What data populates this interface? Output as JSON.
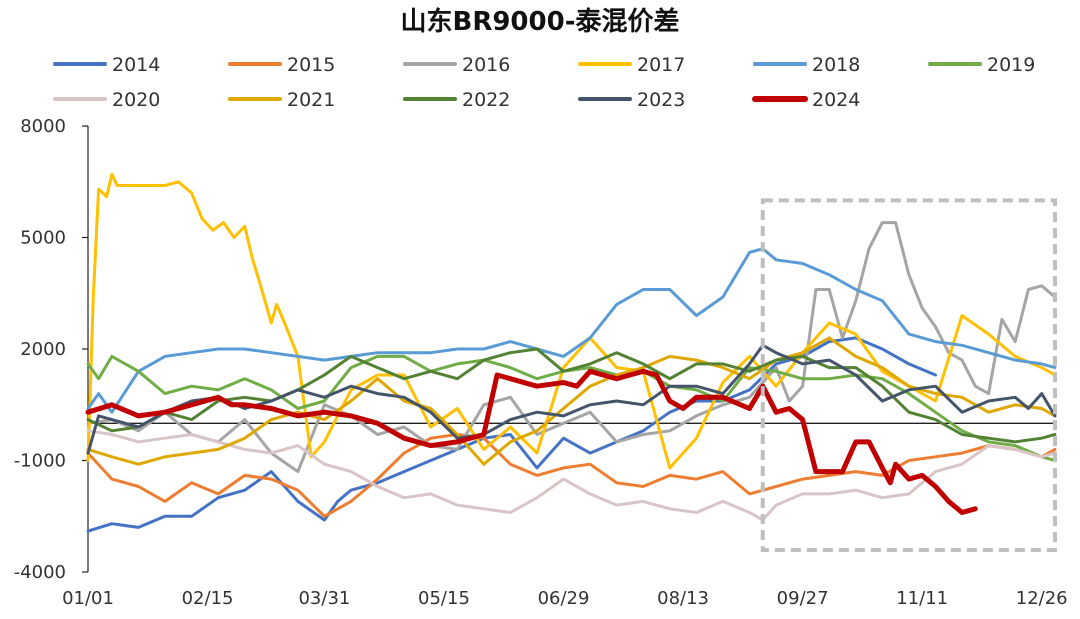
{
  "chart_data": {
    "type": "line",
    "title": "山东BR9000-泰混价差",
    "xlabel": "",
    "ylabel": "",
    "ylim": [
      -4000,
      8000
    ],
    "y_ticks": [
      8000,
      5000,
      2000,
      -1000,
      -4000
    ],
    "x_tick_labels": [
      "01/01",
      "02/15",
      "03/31",
      "05/15",
      "06/29",
      "08/13",
      "09/27",
      "11/11",
      "12/26"
    ],
    "x_ticks_day": [
      1,
      46,
      90,
      135,
      180,
      225,
      270,
      315,
      360
    ],
    "x_range_day": [
      1,
      365
    ],
    "highlight_box": {
      "x_from_day": 255,
      "x_to_day": 365,
      "y_from": -4000,
      "y_to": 6000,
      "style": "dashed"
    },
    "series": [
      {
        "name": "2014",
        "color": "#4472C4",
        "width": 3,
        "days": [
          1,
          10,
          20,
          30,
          40,
          50,
          60,
          70,
          80,
          90,
          95,
          100,
          110,
          120,
          130,
          140,
          150,
          160,
          170,
          180,
          190,
          200,
          210,
          220,
          230,
          240,
          250,
          260,
          270,
          280,
          290,
          300,
          310,
          320
        ],
        "values": [
          -2900,
          -2700,
          -2800,
          -2500,
          -2500,
          -2000,
          -1800,
          -1300,
          -2100,
          -2600,
          -2100,
          -1800,
          -1600,
          -1300,
          -1000,
          -700,
          -400,
          -300,
          -1200,
          -400,
          -800,
          -500,
          -200,
          300,
          600,
          600,
          900,
          1600,
          1800,
          2200,
          2300,
          2000,
          1600,
          1300
        ]
      },
      {
        "name": "2015",
        "color": "#ED7D31",
        "width": 3,
        "days": [
          1,
          10,
          20,
          30,
          40,
          50,
          60,
          70,
          80,
          90,
          100,
          110,
          120,
          130,
          140,
          150,
          160,
          170,
          180,
          190,
          200,
          210,
          220,
          230,
          240,
          250,
          260,
          270,
          280,
          290,
          300,
          310,
          320,
          330,
          340,
          350,
          360,
          365
        ],
        "values": [
          -800,
          -1500,
          -1700,
          -2100,
          -1600,
          -1900,
          -1400,
          -1500,
          -1800,
          -2500,
          -2100,
          -1500,
          -800,
          -400,
          -300,
          -400,
          -1100,
          -1400,
          -1200,
          -1100,
          -1600,
          -1700,
          -1400,
          -1500,
          -1300,
          -1900,
          -1700,
          -1500,
          -1400,
          -1300,
          -1400,
          -1000,
          -900,
          -800,
          -600,
          -700,
          -900,
          -700
        ]
      },
      {
        "name": "2016",
        "color": "#A5A5A5",
        "width": 3,
        "days": [
          1,
          10,
          20,
          30,
          40,
          50,
          60,
          70,
          80,
          90,
          100,
          110,
          120,
          130,
          140,
          150,
          160,
          170,
          180,
          190,
          200,
          210,
          220,
          230,
          240,
          250,
          260,
          265,
          270,
          275,
          280,
          285,
          290,
          295,
          300,
          305,
          310,
          315,
          320,
          325,
          330,
          335,
          340,
          345,
          350,
          355,
          360,
          365
        ],
        "values": [
          0,
          100,
          -200,
          300,
          -300,
          -500,
          100,
          -800,
          -1300,
          500,
          200,
          -300,
          -100,
          -600,
          -700,
          500,
          700,
          -300,
          0,
          300,
          -500,
          -300,
          -200,
          200,
          500,
          700,
          1500,
          600,
          1000,
          3600,
          3600,
          2300,
          3300,
          4700,
          5400,
          5400,
          4000,
          3100,
          2600,
          1900,
          1700,
          1000,
          800,
          2800,
          2200,
          3600,
          3700,
          3400
        ]
      },
      {
        "name": "2017",
        "color": "#FFC000",
        "width": 3,
        "days": [
          1,
          3,
          5,
          8,
          10,
          12,
          15,
          18,
          20,
          25,
          30,
          35,
          40,
          44,
          48,
          52,
          56,
          60,
          63,
          66,
          70,
          72,
          75,
          80,
          85,
          90,
          95,
          100,
          110,
          120,
          130,
          140,
          150,
          160,
          170,
          180,
          190,
          200,
          210,
          220,
          230,
          240,
          250,
          260,
          270,
          280,
          290,
          300,
          310,
          320,
          330,
          340,
          350,
          360,
          365
        ],
        "values": [
          -1000,
          3400,
          6300,
          6100,
          6700,
          6400,
          6400,
          6400,
          6400,
          6400,
          6400,
          6500,
          6200,
          5500,
          5200,
          5400,
          5000,
          5300,
          4400,
          3700,
          2700,
          3200,
          2700,
          1800,
          -900,
          -500,
          200,
          900,
          1300,
          1300,
          -100,
          400,
          -700,
          -100,
          -800,
          1500,
          2300,
          1500,
          1400,
          -1200,
          -400,
          1100,
          1800,
          1000,
          1900,
          2700,
          2400,
          1400,
          1000,
          600,
          2900,
          2400,
          1800,
          1500,
          1300
        ]
      },
      {
        "name": "2018",
        "color": "#5B9BD5",
        "width": 3,
        "days": [
          1,
          5,
          10,
          20,
          30,
          40,
          50,
          60,
          70,
          80,
          90,
          100,
          110,
          120,
          130,
          140,
          150,
          160,
          170,
          180,
          190,
          200,
          210,
          220,
          230,
          240,
          250,
          255,
          260,
          270,
          280,
          290,
          300,
          310,
          320,
          330,
          340,
          350,
          360,
          365
        ],
        "values": [
          400,
          800,
          300,
          1400,
          1800,
          1900,
          2000,
          2000,
          1900,
          1800,
          1700,
          1800,
          1900,
          1900,
          1900,
          2000,
          2000,
          2200,
          2000,
          1800,
          2300,
          3200,
          3600,
          3600,
          2900,
          3400,
          4600,
          4700,
          4400,
          4300,
          4000,
          3600,
          3300,
          2400,
          2200,
          2100,
          1900,
          1700,
          1600,
          1500
        ]
      },
      {
        "name": "2019",
        "color": "#70AD47",
        "width": 3,
        "days": [
          1,
          5,
          10,
          20,
          30,
          40,
          50,
          60,
          70,
          80,
          90,
          100,
          110,
          120,
          130,
          140,
          150,
          160,
          170,
          180,
          190,
          200,
          210,
          220,
          230,
          240,
          250,
          260,
          270,
          280,
          290,
          300,
          310,
          320,
          330,
          340,
          350,
          360,
          365
        ],
        "values": [
          1600,
          1200,
          1800,
          1400,
          800,
          1000,
          900,
          1200,
          900,
          400,
          600,
          1500,
          1800,
          1800,
          1400,
          1600,
          1700,
          1500,
          1200,
          1400,
          1500,
          1300,
          1400,
          1000,
          900,
          600,
          1500,
          1400,
          1200,
          1200,
          1300,
          1200,
          800,
          300,
          -200,
          -500,
          -600,
          -900,
          -1000
        ]
      },
      {
        "name": "2020",
        "color": "#D9C5C5",
        "width": 3,
        "days": [
          1,
          10,
          20,
          30,
          40,
          50,
          60,
          70,
          80,
          90,
          100,
          110,
          120,
          130,
          140,
          150,
          160,
          170,
          180,
          190,
          200,
          210,
          220,
          230,
          240,
          250,
          255,
          260,
          270,
          280,
          290,
          300,
          310,
          320,
          330,
          340,
          350,
          360,
          365
        ],
        "values": [
          -200,
          -300,
          -500,
          -400,
          -300,
          -500,
          -700,
          -800,
          -600,
          -1100,
          -1300,
          -1700,
          -2000,
          -1900,
          -2200,
          -2300,
          -2400,
          -2000,
          -1500,
          -1900,
          -2200,
          -2100,
          -2300,
          -2400,
          -2100,
          -2400,
          -2600,
          -2200,
          -1900,
          -1900,
          -1800,
          -2000,
          -1900,
          -1300,
          -1100,
          -600,
          -700,
          -900,
          -800
        ]
      },
      {
        "name": "2021",
        "color": "#DFA800",
        "width": 3,
        "days": [
          1,
          10,
          20,
          30,
          40,
          50,
          60,
          70,
          80,
          90,
          100,
          110,
          120,
          130,
          140,
          150,
          160,
          170,
          180,
          190,
          200,
          210,
          220,
          230,
          240,
          250,
          260,
          270,
          280,
          290,
          300,
          310,
          320,
          330,
          340,
          350,
          360,
          365
        ],
        "values": [
          -700,
          -900,
          -1100,
          -900,
          -800,
          -700,
          -400,
          100,
          300,
          100,
          600,
          1200,
          600,
          400,
          -300,
          -1100,
          -500,
          -200,
          400,
          1000,
          1300,
          1500,
          1800,
          1700,
          1500,
          1200,
          1700,
          1900,
          2300,
          1800,
          1500,
          1000,
          800,
          700,
          300,
          500,
          400,
          200
        ]
      },
      {
        "name": "2022",
        "color": "#548235",
        "width": 3,
        "days": [
          1,
          10,
          20,
          30,
          40,
          50,
          60,
          70,
          80,
          90,
          100,
          110,
          120,
          130,
          140,
          150,
          160,
          170,
          180,
          190,
          200,
          210,
          220,
          230,
          240,
          250,
          260,
          270,
          280,
          290,
          300,
          310,
          320,
          330,
          340,
          350,
          360,
          365
        ],
        "values": [
          100,
          -200,
          -100,
          300,
          100,
          600,
          700,
          600,
          900,
          1300,
          1800,
          1500,
          1200,
          1400,
          1200,
          1700,
          1900,
          2000,
          1400,
          1600,
          1900,
          1600,
          1200,
          1600,
          1600,
          1400,
          1700,
          1800,
          1500,
          1500,
          1000,
          300,
          100,
          -300,
          -400,
          -500,
          -400,
          -300
        ]
      },
      {
        "name": "2023",
        "color": "#44546A",
        "width": 3,
        "days": [
          1,
          5,
          10,
          20,
          30,
          40,
          50,
          60,
          70,
          80,
          90,
          100,
          110,
          120,
          130,
          140,
          150,
          160,
          170,
          180,
          190,
          200,
          210,
          220,
          230,
          240,
          250,
          255,
          260,
          270,
          280,
          290,
          300,
          310,
          320,
          330,
          340,
          350,
          355,
          360,
          365
        ],
        "values": [
          -800,
          200,
          100,
          -100,
          300,
          600,
          700,
          400,
          600,
          900,
          700,
          1000,
          800,
          700,
          300,
          -400,
          -300,
          100,
          300,
          200,
          500,
          600,
          500,
          1000,
          1000,
          800,
          1600,
          2100,
          1900,
          1600,
          1700,
          1300,
          600,
          900,
          1000,
          300,
          600,
          700,
          400,
          800,
          200
        ]
      },
      {
        "name": "2024",
        "color": "#C00000",
        "width": 5,
        "days": [
          1,
          10,
          20,
          30,
          40,
          50,
          55,
          60,
          70,
          80,
          90,
          100,
          110,
          120,
          130,
          140,
          150,
          155,
          160,
          170,
          180,
          185,
          190,
          200,
          210,
          215,
          220,
          225,
          230,
          240,
          250,
          255,
          260,
          265,
          270,
          275,
          280,
          285,
          290,
          295,
          300,
          303,
          305,
          310,
          315,
          320,
          325,
          330,
          335
        ],
        "values": [
          300,
          500,
          200,
          300,
          500,
          700,
          500,
          500,
          400,
          200,
          300,
          200,
          0,
          -400,
          -600,
          -500,
          -300,
          1300,
          1200,
          1000,
          1100,
          1000,
          1400,
          1200,
          1400,
          1300,
          600,
          400,
          700,
          700,
          400,
          1000,
          300,
          400,
          100,
          -1300,
          -1300,
          -1300,
          -500,
          -500,
          -1200,
          -1600,
          -1100,
          -1500,
          -1400,
          -1700,
          -2100,
          -2400,
          -2300
        ]
      }
    ]
  }
}
